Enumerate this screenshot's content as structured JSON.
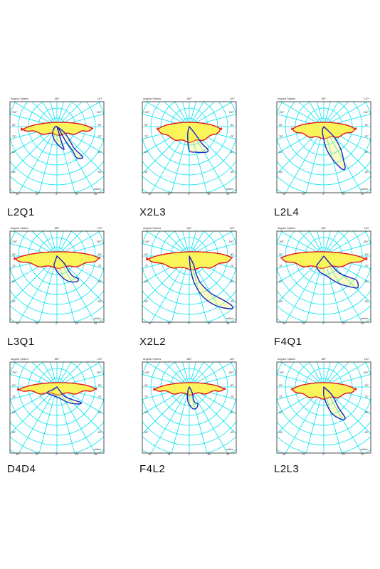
{
  "colors": {
    "grid": "#00e5ee",
    "fill": "#f8f45a",
    "curve_c0": "#e8141c",
    "curve_c90": "#1a23c8",
    "frame": "#222222"
  },
  "diagram_labels": {
    "header_left": "Angular Splines",
    "header_mid": "180°",
    "header_right": "120°",
    "angles_left": [
      "150°",
      "90°",
      "75°",
      "60°",
      "45°"
    ],
    "angles_right": [
      "150°",
      "90°",
      "75°",
      "60°",
      "45°"
    ],
    "bottom": [
      "30°",
      "15°",
      "0°",
      "15°",
      "30°"
    ],
    "footer": "cd/klm"
  },
  "photometric_plots": [
    {
      "name": "L2Q1"
    },
    {
      "name": "X2L3"
    },
    {
      "name": "L2L4"
    },
    {
      "name": "L3Q1"
    },
    {
      "name": "X2L2"
    },
    {
      "name": "F4Q1"
    },
    {
      "name": "D4D4"
    },
    {
      "name": "F4L2"
    },
    {
      "name": "L2L3"
    }
  ]
}
